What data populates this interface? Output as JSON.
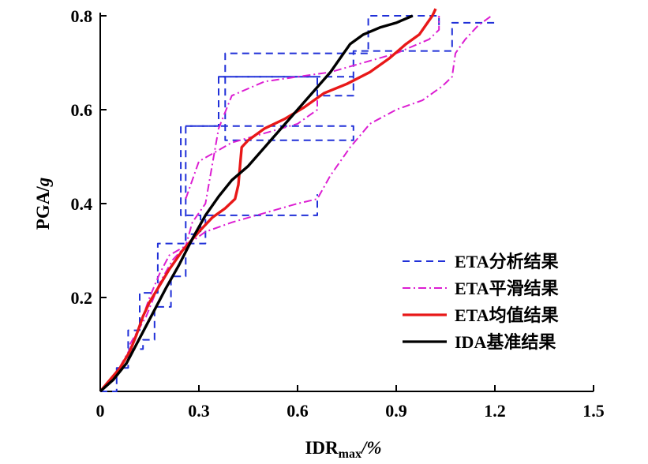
{
  "chart_data": {
    "type": "line",
    "title": "",
    "xlabel": {
      "main": "IDR",
      "sub": "max",
      "suffix": "/%"
    },
    "ylabel": {
      "main": "PGA/",
      "italic": "g"
    },
    "xlim": [
      0,
      1.5
    ],
    "ylim": [
      0,
      0.8
    ],
    "xticks": [
      {
        "value": 0,
        "label": "0"
      },
      {
        "value": 0.3,
        "label": "0.3"
      },
      {
        "value": 0.6,
        "label": "0.6"
      },
      {
        "value": 0.9,
        "label": "0.9"
      },
      {
        "value": 1.2,
        "label": "1.2"
      },
      {
        "value": 1.5,
        "label": "1.5"
      }
    ],
    "yticks": [
      {
        "value": 0.2,
        "label": "0.2"
      },
      {
        "value": 0.4,
        "label": "0.4"
      },
      {
        "value": 0.6,
        "label": "0.6"
      },
      {
        "value": 0.8,
        "label": "0.8"
      }
    ],
    "grid": false,
    "legend_position": "bottom-right",
    "series": [
      {
        "name": "ETA分析结果",
        "color": "#2030d8",
        "style": "dashed",
        "lines": [
          {
            "x": [
              0.0,
              0.05,
              0.05,
              0.085,
              0.085,
              0.12,
              0.12,
              0.175,
              0.175,
              0.26,
              0.26,
              0.36,
              0.36,
              0.66,
              0.66,
              0.77,
              0.77,
              1.07,
              1.07,
              1.2
            ],
            "y": [
              0.0,
              0.0,
              0.05,
              0.05,
              0.13,
              0.13,
              0.21,
              0.21,
              0.315,
              0.315,
              0.565,
              0.565,
              0.67,
              0.67,
              0.63,
              0.63,
              0.725,
              0.725,
              0.785,
              0.785
            ]
          },
          {
            "x": [
              0.085,
              0.13,
              0.13,
              0.165,
              0.165,
              0.215,
              0.215,
              0.26,
              0.26,
              0.305,
              0.305,
              0.245,
              0.245,
              0.77,
              0.77,
              0.38,
              0.38,
              0.815,
              0.815,
              1.03,
              1.03
            ],
            "y": [
              0.09,
              0.09,
              0.11,
              0.11,
              0.18,
              0.18,
              0.245,
              0.245,
              0.335,
              0.335,
              0.375,
              0.375,
              0.565,
              0.565,
              0.535,
              0.535,
              0.72,
              0.72,
              0.8,
              0.8,
              0.78
            ]
          },
          {
            "x": [
              0.36,
              0.77
            ],
            "y": [
              0.67,
              0.67
            ]
          },
          {
            "x": [
              0.265,
              0.32,
              0.32,
              0.4,
              0.4,
              0.66,
              0.66
            ],
            "y": [
              0.315,
              0.315,
              0.375,
              0.375,
              0.375,
              0.375,
              0.42
            ]
          }
        ]
      },
      {
        "name": "ETA平滑结果",
        "color": "#dc1ed2",
        "style": "dashdot",
        "lines": [
          {
            "x": [
              0.0,
              0.05,
              0.09,
              0.12,
              0.15,
              0.18,
              0.21,
              0.26,
              0.32,
              0.36,
              0.4,
              0.5,
              0.6,
              0.66,
              0.7,
              0.76,
              0.82,
              0.9,
              0.98,
              1.04,
              1.07,
              1.08,
              1.11,
              1.15,
              1.19
            ],
            "y": [
              0.0,
              0.04,
              0.09,
              0.14,
              0.2,
              0.25,
              0.29,
              0.31,
              0.34,
              0.35,
              0.36,
              0.38,
              0.4,
              0.41,
              0.46,
              0.52,
              0.57,
              0.6,
              0.62,
              0.65,
              0.67,
              0.72,
              0.75,
              0.78,
              0.8
            ]
          },
          {
            "x": [
              0.09,
              0.14,
              0.18,
              0.22,
              0.26,
              0.28,
              0.32,
              0.36,
              0.4,
              0.5,
              0.6,
              0.7,
              0.8,
              0.9,
              1.0,
              1.03,
              1.03
            ],
            "y": [
              0.1,
              0.16,
              0.23,
              0.28,
              0.31,
              0.36,
              0.4,
              0.56,
              0.63,
              0.66,
              0.67,
              0.68,
              0.7,
              0.72,
              0.75,
              0.77,
              0.8
            ]
          },
          {
            "x": [
              0.26,
              0.3,
              0.4,
              0.5,
              0.6,
              0.66,
              0.66
            ],
            "y": [
              0.41,
              0.49,
              0.53,
              0.55,
              0.57,
              0.6,
              0.62
            ]
          }
        ]
      },
      {
        "name": "ETA均值结果",
        "color": "#e81818",
        "style": "solid",
        "lines": [
          {
            "x": [
              0.0,
              0.03,
              0.06,
              0.09,
              0.11,
              0.13,
              0.15,
              0.18,
              0.21,
              0.25,
              0.3,
              0.34,
              0.38,
              0.41,
              0.42,
              0.425,
              0.43,
              0.45,
              0.5,
              0.56,
              0.62,
              0.68,
              0.75,
              0.82,
              0.88,
              0.93,
              0.97,
              0.99,
              1.01,
              1.02
            ],
            "y": [
              0.0,
              0.025,
              0.05,
              0.085,
              0.12,
              0.16,
              0.19,
              0.225,
              0.26,
              0.3,
              0.34,
              0.37,
              0.39,
              0.41,
              0.44,
              0.48,
              0.52,
              0.535,
              0.56,
              0.58,
              0.605,
              0.635,
              0.655,
              0.68,
              0.71,
              0.74,
              0.76,
              0.78,
              0.8,
              0.815
            ]
          }
        ]
      },
      {
        "name": "IDA基准结果",
        "color": "#000000",
        "style": "solid",
        "lines": [
          {
            "x": [
              0.0,
              0.04,
              0.08,
              0.11,
              0.14,
              0.17,
              0.2,
              0.24,
              0.28,
              0.32,
              0.36,
              0.4,
              0.45,
              0.5,
              0.55,
              0.6,
              0.65,
              0.7,
              0.72,
              0.74,
              0.76,
              0.8,
              0.85,
              0.9,
              0.95
            ],
            "y": [
              0.0,
              0.025,
              0.06,
              0.1,
              0.14,
              0.18,
              0.22,
              0.27,
              0.325,
              0.375,
              0.415,
              0.45,
              0.48,
              0.52,
              0.56,
              0.6,
              0.64,
              0.68,
              0.7,
              0.72,
              0.74,
              0.76,
              0.775,
              0.785,
              0.8
            ]
          }
        ]
      }
    ]
  }
}
